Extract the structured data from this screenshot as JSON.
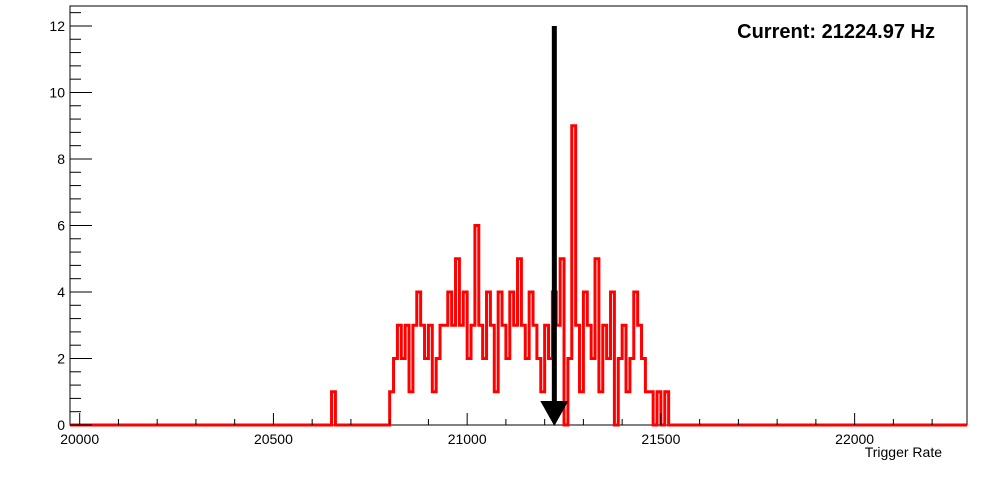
{
  "chart_data": {
    "type": "histogram",
    "annotation": "Current: 21224.97 Hz",
    "current_value": 21224.97,
    "xlabel": "Trigger Rate",
    "ylabel": "",
    "xlim": [
      19975,
      22290
    ],
    "ylim": [
      0,
      12.6
    ],
    "x_ticks": [
      20000,
      20500,
      21000,
      21500,
      22000
    ],
    "y_ticks": [
      0,
      2,
      4,
      6,
      8,
      10,
      12
    ],
    "grid": false,
    "colors": {
      "histogram": "#ff0000",
      "arrow": "#000000",
      "frame": "#000000"
    },
    "bin_width": 10,
    "bins": [
      [
        20650,
        1
      ],
      [
        20800,
        1
      ],
      [
        20810,
        2
      ],
      [
        20820,
        3
      ],
      [
        20830,
        2
      ],
      [
        20840,
        3
      ],
      [
        20850,
        1
      ],
      [
        20860,
        3
      ],
      [
        20870,
        4
      ],
      [
        20880,
        3
      ],
      [
        20890,
        2
      ],
      [
        20900,
        3
      ],
      [
        20910,
        1
      ],
      [
        20920,
        2
      ],
      [
        20930,
        3
      ],
      [
        20940,
        3
      ],
      [
        20950,
        4
      ],
      [
        20960,
        3
      ],
      [
        20970,
        5
      ],
      [
        20980,
        3
      ],
      [
        20990,
        4
      ],
      [
        21000,
        2
      ],
      [
        21010,
        3
      ],
      [
        21020,
        6
      ],
      [
        21030,
        3
      ],
      [
        21040,
        2
      ],
      [
        21050,
        4
      ],
      [
        21060,
        3
      ],
      [
        21070,
        1
      ],
      [
        21080,
        4
      ],
      [
        21090,
        3
      ],
      [
        21100,
        2
      ],
      [
        21110,
        4
      ],
      [
        21120,
        3
      ],
      [
        21130,
        5
      ],
      [
        21140,
        3
      ],
      [
        21150,
        2
      ],
      [
        21160,
        4
      ],
      [
        21170,
        3
      ],
      [
        21180,
        2
      ],
      [
        21190,
        1
      ],
      [
        21200,
        3
      ],
      [
        21210,
        2
      ],
      [
        21220,
        4
      ],
      [
        21230,
        3
      ],
      [
        21240,
        5
      ],
      [
        21250,
        0
      ],
      [
        21260,
        2
      ],
      [
        21270,
        9
      ],
      [
        21280,
        3
      ],
      [
        21290,
        1
      ],
      [
        21300,
        4
      ],
      [
        21310,
        3
      ],
      [
        21320,
        2
      ],
      [
        21330,
        5
      ],
      [
        21340,
        1
      ],
      [
        21350,
        3
      ],
      [
        21360,
        2
      ],
      [
        21370,
        4
      ],
      [
        21380,
        0
      ],
      [
        21390,
        2
      ],
      [
        21400,
        3
      ],
      [
        21410,
        1
      ],
      [
        21420,
        2
      ],
      [
        21430,
        4
      ],
      [
        21440,
        3
      ],
      [
        21450,
        2
      ],
      [
        21460,
        1
      ],
      [
        21470,
        1
      ],
      [
        21480,
        0
      ],
      [
        21490,
        1
      ],
      [
        21500,
        0
      ],
      [
        21510,
        1
      ]
    ]
  }
}
